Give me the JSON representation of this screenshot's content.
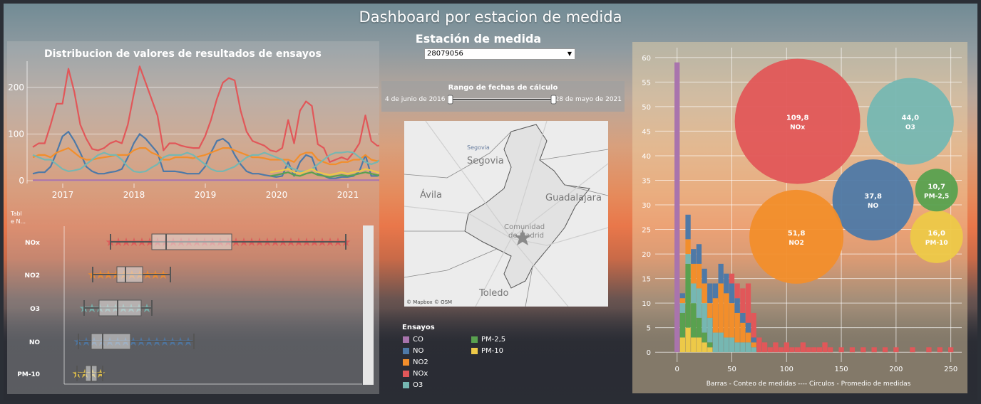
{
  "dashboard": {
    "title": "Dashboard por estacion de medida"
  },
  "station": {
    "label": "Estación de medida",
    "value": "28079056"
  },
  "date_range": {
    "label": "Rango de fechas de cálculo",
    "start": "4 de junio de 2016",
    "end": "28 de mayo de 2021"
  },
  "map": {
    "attribution": "© Mapbox  © OSM",
    "places": {
      "segovia_small": "Segovia",
      "segovia": "Segovia",
      "avila": "Ávila",
      "guadalajara": "Guadalajara",
      "madrid_1": "Comunidad",
      "madrid_2": "de Madrid",
      "toledo": "Toledo"
    }
  },
  "legend": {
    "title": "Ensayos",
    "items": [
      {
        "name": "CO",
        "color": "#a974ad"
      },
      {
        "name": "NO",
        "color": "#4e79a7"
      },
      {
        "name": "NO2",
        "color": "#f28e2b"
      },
      {
        "name": "NOx",
        "color": "#e15759"
      },
      {
        "name": "O3",
        "color": "#76b7b2"
      },
      {
        "name": "PM-2,5",
        "color": "#59a14f"
      },
      {
        "name": "PM-10",
        "color": "#edc948"
      }
    ]
  },
  "side_label": {
    "line1": "Tabl",
    "line2": "e N..."
  },
  "chart_data": [
    {
      "type": "line",
      "title": "Distribucion de valores de resultados de ensayos",
      "x_ticks": [
        "2017",
        "2018",
        "2019",
        "2020",
        "2021"
      ],
      "y_ticks": [
        "0",
        "100",
        "200"
      ],
      "ylim": [
        0,
        250
      ],
      "xlim": [
        2016.5,
        2021.42
      ],
      "x_start": 2016.58,
      "x_step": 0.0833,
      "series": [
        {
          "name": "NOx",
          "color": "#e15759",
          "values": [
            72,
            80,
            80,
            120,
            165,
            165,
            240,
            190,
            120,
            90,
            68,
            65,
            70,
            80,
            85,
            80,
            120,
            185,
            245,
            210,
            175,
            140,
            65,
            80,
            80,
            75,
            72,
            70,
            70,
            95,
            130,
            175,
            210,
            220,
            215,
            150,
            105,
            85,
            80,
            75,
            65,
            62,
            70,
            130,
            80,
            150,
            170,
            160,
            78,
            70,
            40,
            45,
            50,
            45,
            60,
            80,
            140,
            85,
            75,
            75,
            50
          ]
        },
        {
          "name": "NO",
          "color": "#4e79a7",
          "values": [
            15,
            18,
            18,
            30,
            60,
            95,
            105,
            85,
            60,
            30,
            20,
            15,
            15,
            18,
            20,
            25,
            50,
            80,
            100,
            90,
            75,
            60,
            20,
            20,
            20,
            18,
            15,
            15,
            15,
            30,
            60,
            85,
            90,
            80,
            55,
            35,
            20,
            15,
            15,
            12,
            10,
            8,
            10,
            40,
            10,
            40,
            55,
            50,
            15,
            10,
            5,
            5,
            8,
            8,
            10,
            20,
            55,
            10,
            10,
            15,
            8
          ]
        },
        {
          "name": "NO2",
          "color": "#f28e2b",
          "values": [
            50,
            55,
            55,
            50,
            60,
            65,
            70,
            60,
            50,
            45,
            45,
            48,
            50,
            52,
            55,
            55,
            55,
            65,
            70,
            70,
            60,
            55,
            45,
            45,
            50,
            50,
            50,
            48,
            52,
            55,
            60,
            65,
            70,
            70,
            65,
            60,
            55,
            50,
            50,
            48,
            45,
            45,
            45,
            45,
            40,
            55,
            60,
            60,
            45,
            40,
            35,
            35,
            40,
            40,
            45,
            45,
            55,
            45,
            42,
            45,
            35
          ]
        },
        {
          "name": "O3",
          "color": "#76b7b2",
          "values": [
            55,
            50,
            45,
            45,
            35,
            25,
            20,
            22,
            25,
            35,
            45,
            55,
            60,
            55,
            55,
            45,
            30,
            20,
            18,
            20,
            28,
            35,
            50,
            55,
            55,
            55,
            60,
            55,
            45,
            35,
            25,
            20,
            20,
            25,
            30,
            40,
            50,
            55,
            55,
            60,
            55,
            50,
            45,
            30,
            25,
            20,
            20,
            25,
            35,
            45,
            55,
            60,
            60,
            62,
            60,
            50,
            40,
            35,
            40,
            50,
            55
          ]
        },
        {
          "name": "PM-2,5",
          "color": "#59a14f",
          "values": [
            null,
            null,
            null,
            null,
            null,
            null,
            null,
            null,
            null,
            null,
            null,
            null,
            null,
            null,
            null,
            null,
            null,
            null,
            null,
            null,
            null,
            null,
            null,
            null,
            null,
            null,
            null,
            null,
            null,
            null,
            null,
            null,
            null,
            null,
            null,
            null,
            null,
            null,
            null,
            null,
            10,
            12,
            15,
            18,
            12,
            10,
            15,
            18,
            12,
            10,
            8,
            10,
            12,
            10,
            12,
            15,
            18,
            15,
            12,
            10,
            8
          ]
        },
        {
          "name": "PM-10",
          "color": "#edc948",
          "values": [
            null,
            null,
            null,
            null,
            null,
            null,
            null,
            null,
            null,
            null,
            null,
            null,
            null,
            null,
            null,
            null,
            null,
            null,
            null,
            null,
            null,
            null,
            null,
            null,
            null,
            null,
            null,
            null,
            null,
            null,
            null,
            null,
            null,
            null,
            null,
            null,
            null,
            null,
            null,
            null,
            18,
            20,
            22,
            25,
            18,
            15,
            20,
            25,
            18,
            15,
            12,
            15,
            18,
            15,
            18,
            20,
            25,
            22,
            18,
            15,
            12
          ]
        },
        {
          "name": "CO",
          "color": "#a974ad",
          "values": [
            1,
            1,
            1,
            1,
            1,
            1,
            1,
            1,
            1,
            1,
            1,
            1,
            1,
            1,
            1,
            1,
            1,
            1,
            1,
            1,
            1,
            1,
            1,
            1,
            1,
            1,
            1,
            1,
            1,
            1,
            1,
            1,
            1,
            1,
            1,
            1,
            1,
            1,
            1,
            1,
            1,
            1,
            1,
            1,
            1,
            1,
            1,
            1,
            1,
            1,
            1,
            1,
            1,
            1,
            1,
            1,
            1,
            1,
            1,
            1,
            1
          ]
        }
      ]
    },
    {
      "type": "boxplot",
      "categories": [
        "NOx",
        "NO2",
        "O3",
        "NO",
        "PM-10"
      ],
      "boxes": [
        {
          "name": "NOx",
          "color": "#e15759",
          "min": 145,
          "q1": 203,
          "median": 223,
          "q3": 315,
          "max": 475
        },
        {
          "name": "NO2",
          "color": "#f28e2b",
          "min": 120,
          "q1": 154,
          "median": 166,
          "q3": 190,
          "max": 229
        },
        {
          "name": "O3",
          "color": "#76b7b2",
          "min": 108,
          "q1": 129,
          "median": 155,
          "q3": 188,
          "max": 203
        },
        {
          "name": "NO",
          "color": "#4e79a7",
          "min": 100,
          "q1": 118,
          "median": 134,
          "q3": 173,
          "max": 262
        },
        {
          "name": "PM-10",
          "color": "#edc948",
          "min": 98,
          "q1": 110,
          "median": 118,
          "q3": 126,
          "max": 134
        }
      ]
    },
    {
      "type": "bubble+bar",
      "xlabel": "Barras - Conteo de medidas ---- Circulos - Promedio de medidas",
      "x_ticks": [
        "0",
        "50",
        "100",
        "150",
        "200",
        "250"
      ],
      "xlim": [
        -20,
        260
      ],
      "y_ticks": [
        "0",
        "5",
        "10",
        "15",
        "20",
        "25",
        "30",
        "35",
        "40",
        "45",
        "50",
        "55",
        "60"
      ],
      "ylim": [
        -2,
        62
      ],
      "bubbles": [
        {
          "name": "NOx",
          "value": "109,8",
          "color": "#e15759",
          "x": 110,
          "y": 47,
          "r": 88
        },
        {
          "name": "O3",
          "value": "44,0",
          "color": "#76b7b2",
          "x": 213,
          "y": 47,
          "r": 61
        },
        {
          "name": "NO",
          "value": "37,8",
          "color": "#4e79a7",
          "x": 179,
          "y": 31,
          "r": 57
        },
        {
          "name": "NO2",
          "value": "51,8",
          "color": "#f28e2b",
          "x": 109,
          "y": 23.5,
          "r": 66
        },
        {
          "name": "PM-10",
          "value": "16,0",
          "color": "#edc948",
          "x": 237,
          "y": 23.5,
          "r": 37
        },
        {
          "name": "PM-2,5",
          "value": "10,7",
          "color": "#59a14f",
          "x": 237,
          "y": 33,
          "r": 30
        }
      ],
      "bars": [
        {
          "x": 0,
          "CO": 59
        },
        {
          "x": 5,
          "PM-10": 3,
          "PM-2,5": 5,
          "O3": 2,
          "NO2": 1,
          "NO": 1
        },
        {
          "x": 10,
          "PM-10": 5,
          "PM-2,5": 13,
          "O3": 2,
          "NO2": 3,
          "NO": 5
        },
        {
          "x": 15,
          "PM-10": 3,
          "PM-2,5": 7,
          "O3": 4,
          "NO2": 4,
          "NO": 3
        },
        {
          "x": 20,
          "PM-10": 3,
          "PM-2,5": 4,
          "O3": 6,
          "NO2": 5,
          "NO": 4
        },
        {
          "x": 25,
          "PM-10": 2,
          "PM-2,5": 2,
          "O3": 6,
          "NO2": 4,
          "NO": 3
        },
        {
          "x": 30,
          "PM-10": 1,
          "PM-2,5": 1,
          "O3": 5,
          "NO2": 3,
          "NO": 4
        },
        {
          "x": 35,
          "O3": 4,
          "NO2": 7,
          "NO": 3
        },
        {
          "x": 40,
          "O3": 4,
          "NO2": 10,
          "NO": 4
        },
        {
          "x": 45,
          "O3": 3,
          "NO2": 9,
          "NO": 4
        },
        {
          "x": 50,
          "O3": 3,
          "NO2": 7,
          "NO": 4,
          "NOx": 2
        },
        {
          "x": 55,
          "O3": 2,
          "NO2": 6,
          "NO": 3,
          "NOx": 3
        },
        {
          "x": 60,
          "O3": 2,
          "NO2": 4,
          "NO": 2,
          "NOx": 5
        },
        {
          "x": 65,
          "O3": 2,
          "NO2": 2,
          "NO": 2,
          "NOx": 8
        },
        {
          "x": 70,
          "O3": 1,
          "NO2": 1,
          "NO": 1,
          "NOx": 5
        },
        {
          "x": 75,
          "NOx": 3
        },
        {
          "x": 80,
          "NOx": 2
        },
        {
          "x": 85,
          "NOx": 1
        },
        {
          "x": 90,
          "NOx": 2
        },
        {
          "x": 95,
          "NOx": 1
        },
        {
          "x": 100,
          "NOx": 2
        },
        {
          "x": 105,
          "NOx": 1
        },
        {
          "x": 110,
          "NOx": 1
        },
        {
          "x": 115,
          "NOx": 2
        },
        {
          "x": 120,
          "NOx": 1
        },
        {
          "x": 125,
          "NOx": 1
        },
        {
          "x": 130,
          "NOx": 1
        },
        {
          "x": 135,
          "NOx": 2
        },
        {
          "x": 140,
          "NOx": 1
        },
        {
          "x": 150,
          "NOx": 1
        },
        {
          "x": 160,
          "NOx": 1
        },
        {
          "x": 170,
          "NOx": 1
        },
        {
          "x": 180,
          "NOx": 1
        },
        {
          "x": 190,
          "NOx": 1
        },
        {
          "x": 200,
          "NOx": 1
        },
        {
          "x": 215,
          "NOx": 1
        },
        {
          "x": 230,
          "NOx": 1
        },
        {
          "x": 240,
          "NOx": 1
        },
        {
          "x": 250,
          "NOx": 1
        }
      ]
    }
  ]
}
